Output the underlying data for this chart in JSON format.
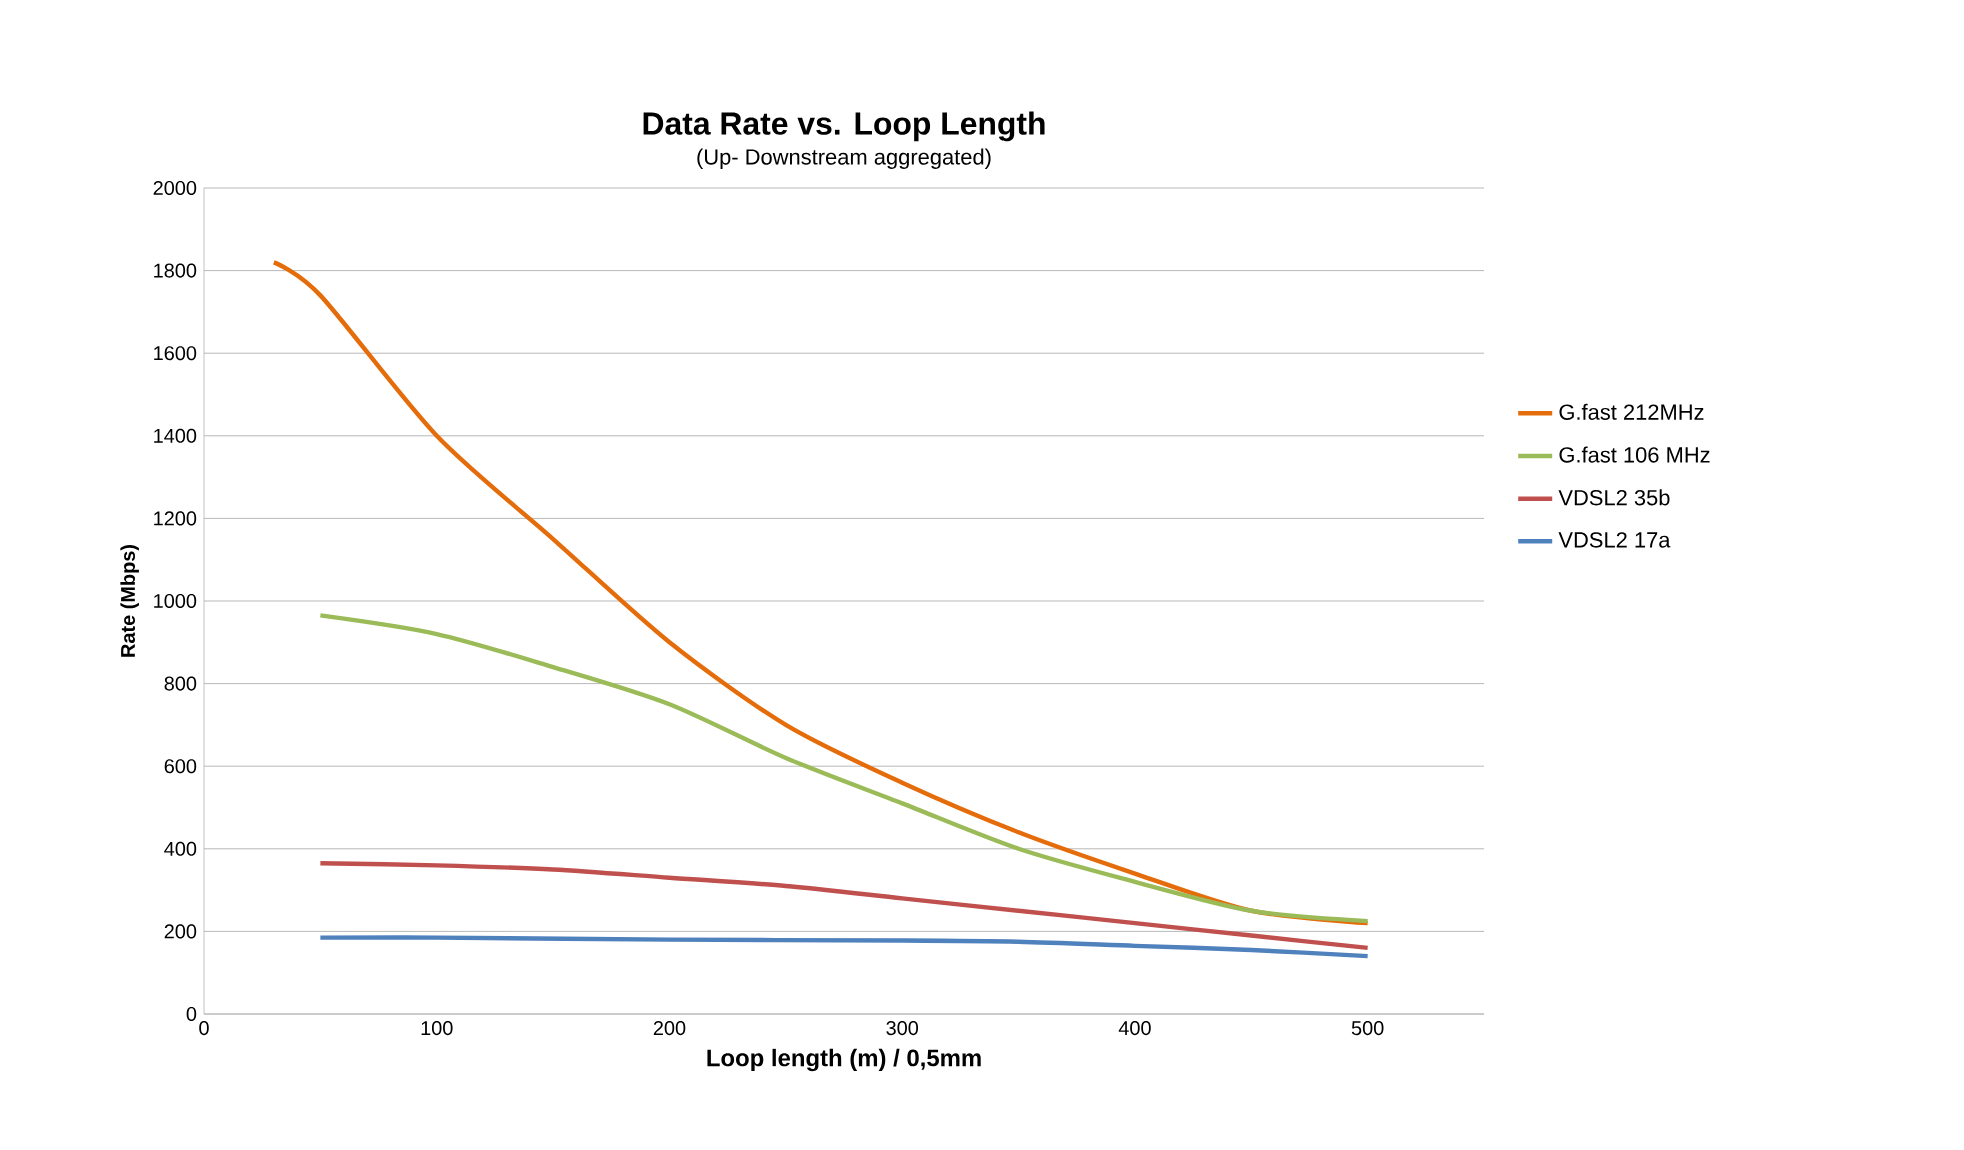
{
  "chart_data": {
    "type": "line",
    "title": "Data Rate vs. Loop Length",
    "subtitle": "(Up- Downstream aggregated)",
    "xlabel": "Loop length (m) / 0,5mm",
    "ylabel": "Rate (Mbps)",
    "xlim": [
      0,
      550
    ],
    "xticks": [
      0,
      100,
      200,
      300,
      400,
      500
    ],
    "ylim": [
      0,
      2000
    ],
    "yticks": [
      0,
      200,
      400,
      600,
      800,
      1000,
      1200,
      1400,
      1600,
      1800,
      2000
    ],
    "grid": "y",
    "legend": "right",
    "marker": "none",
    "line_style": "solid",
    "series": [
      {
        "name": "G.fast 212MHz",
        "color": "#e46c0a",
        "x": [
          30,
          50,
          100,
          150,
          200,
          250,
          300,
          350,
          400,
          450,
          500
        ],
        "values": [
          1820,
          1740,
          1400,
          1150,
          900,
          700,
          560,
          440,
          340,
          250,
          220
        ]
      },
      {
        "name": "G.fast 106 MHz",
        "color": "#9bbb59",
        "x": [
          50,
          100,
          150,
          200,
          250,
          300,
          350,
          400,
          450,
          500
        ],
        "values": [
          965,
          920,
          840,
          750,
          620,
          510,
          400,
          320,
          250,
          225
        ]
      },
      {
        "name": "VDSL2 35b",
        "color": "#c0504d",
        "x": [
          50,
          100,
          150,
          200,
          250,
          300,
          350,
          400,
          450,
          500
        ],
        "values": [
          365,
          360,
          350,
          330,
          310,
          280,
          250,
          220,
          190,
          160
        ]
      },
      {
        "name": "VDSL2 17a",
        "color": "#4f81bd",
        "x": [
          50,
          100,
          200,
          300,
          350,
          400,
          450,
          500
        ],
        "values": [
          185,
          185,
          180,
          178,
          175,
          165,
          155,
          140
        ]
      }
    ]
  }
}
